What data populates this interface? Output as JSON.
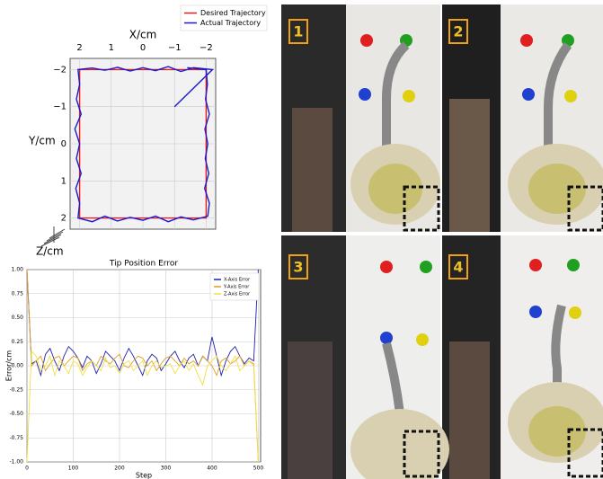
{
  "chart_data": [
    {
      "type": "line",
      "xlabel": "X/cm",
      "ylabel": "Y/cm",
      "zlabel": "Z/cm",
      "xlim": [
        2.3,
        -2.3
      ],
      "ylim": [
        2.3,
        -2.3
      ],
      "xticks": [
        2,
        1,
        0,
        {
          "value": -1,
          "label": "−1"
        },
        {
          "value": -2,
          "label": "−2"
        }
      ],
      "yticks": [
        {
          "value": -2,
          "label": "−2"
        },
        {
          "value": -1,
          "label": "−1"
        },
        0,
        1,
        2
      ],
      "grid": true,
      "legend": "upper right",
      "series": [
        {
          "name": "Desired Trajectory",
          "color": "#e02020",
          "x": [
            2.0,
            -2.0,
            -2.0,
            2.0,
            2.0
          ],
          "values": [
            -2.0,
            -2.0,
            2.0,
            2.0,
            -2.0
          ]
        },
        {
          "name": "Actual Trajectory",
          "color": "#1a1ad0",
          "x": [
            -1.0,
            -2.2,
            -1.6,
            -1.2,
            -0.8,
            -0.4,
            0.0,
            0.4,
            0.8,
            1.2,
            1.6,
            2.05,
            2.0,
            2.1,
            1.95,
            2.15,
            2.0,
            2.1,
            1.95,
            2.12,
            2.0,
            2.05,
            1.6,
            1.2,
            0.8,
            0.4,
            0.0,
            -0.4,
            -0.8,
            -1.2,
            -1.6,
            -2.05,
            -2.1,
            -1.95,
            -2.08,
            -1.97,
            -2.05,
            -1.96,
            -2.1,
            -1.98,
            -2.04,
            -2.0,
            -1.4
          ],
          "values": [
            -1.0,
            -2.0,
            -2.05,
            -1.95,
            -2.08,
            -1.97,
            -2.05,
            -1.96,
            -2.06,
            -1.98,
            -2.04,
            -2.0,
            -1.6,
            -1.2,
            -0.8,
            -0.4,
            0.0,
            0.4,
            0.8,
            1.2,
            1.6,
            2.0,
            2.1,
            1.95,
            2.08,
            1.98,
            2.06,
            1.95,
            2.1,
            1.97,
            2.05,
            1.95,
            1.6,
            1.2,
            0.8,
            0.4,
            0.0,
            -0.4,
            -0.8,
            -1.2,
            -1.6,
            -2.0,
            -2.05
          ]
        }
      ]
    },
    {
      "type": "line",
      "title": "Tip Position Error",
      "xlabel": "Step",
      "ylabel": "Error/cm",
      "xlim": [
        0,
        505
      ],
      "ylim": [
        -1,
        1
      ],
      "xticks": [
        0,
        100,
        200,
        300,
        400,
        500
      ],
      "yticks": [
        {
          "value": -1,
          "label": "-1.00"
        },
        {
          "value": -0.75,
          "label": "-0.75"
        },
        {
          "value": -0.5,
          "label": "-0.50"
        },
        {
          "value": -0.25,
          "label": "-0.25"
        },
        {
          "value": 0,
          "label": "0.00"
        },
        {
          "value": 0.25,
          "label": "0.25"
        },
        {
          "value": 0.5,
          "label": "0.50"
        },
        {
          "value": 0.75,
          "label": "0.75"
        },
        {
          "value": 1,
          "label": "1.00"
        }
      ],
      "grid": true,
      "legend": "upper right",
      "x": [
        0,
        10,
        20,
        30,
        40,
        50,
        60,
        70,
        80,
        90,
        100,
        110,
        120,
        130,
        140,
        150,
        160,
        170,
        180,
        190,
        200,
        210,
        220,
        230,
        240,
        250,
        260,
        270,
        280,
        290,
        300,
        310,
        320,
        330,
        340,
        350,
        360,
        370,
        380,
        390,
        400,
        410,
        420,
        430,
        440,
        450,
        460,
        470,
        480,
        490,
        500
      ],
      "series": [
        {
          "name": "X-Axis Error",
          "color": "#2020b0",
          "values": [
            1.0,
            0.02,
            0.05,
            -0.1,
            0.12,
            0.18,
            0.05,
            -0.05,
            0.1,
            0.2,
            0.15,
            0.08,
            -0.02,
            0.1,
            0.05,
            -0.08,
            0.02,
            0.15,
            0.1,
            0.05,
            -0.05,
            0.08,
            0.18,
            0.1,
            0.0,
            -0.1,
            0.05,
            0.12,
            0.08,
            -0.05,
            0.02,
            0.1,
            0.15,
            0.05,
            -0.02,
            0.08,
            0.12,
            0.0,
            0.1,
            0.05,
            0.3,
            0.1,
            -0.1,
            0.05,
            0.15,
            0.2,
            0.1,
            0.02,
            0.08,
            0.05,
            1.0
          ]
        },
        {
          "name": "Y-Axis Error",
          "color": "#e0a020",
          "values": [
            1.0,
            0.0,
            0.05,
            0.1,
            -0.05,
            0.02,
            0.08,
            0.1,
            0.0,
            0.05,
            0.1,
            0.08,
            -0.05,
            0.02,
            0.05,
            0.0,
            0.1,
            0.05,
            0.02,
            0.08,
            0.12,
            0.0,
            -0.02,
            0.05,
            0.1,
            0.08,
            0.0,
            0.05,
            -0.05,
            0.02,
            0.08,
            0.1,
            0.05,
            0.0,
            0.08,
            0.02,
            0.05,
            0.0,
            0.1,
            0.05,
            0.0,
            -0.1,
            0.05,
            0.08,
            0.02,
            0.05,
            0.1,
            0.0,
            0.05,
            0.02,
            -1.0
          ]
        },
        {
          "name": "Z-Axis Error",
          "color": "#f0e040",
          "values": [
            -1.0,
            0.15,
            0.1,
            -0.05,
            0.0,
            0.1,
            -0.1,
            0.05,
            0.0,
            -0.08,
            0.05,
            0.02,
            -0.1,
            -0.02,
            0.05,
            0.0,
            -0.05,
            0.08,
            -0.02,
            0.0,
            -0.08,
            0.02,
            0.05,
            -0.05,
            0.0,
            0.05,
            -0.1,
            0.0,
            0.05,
            -0.02,
            0.0,
            0.02,
            -0.08,
            0.0,
            0.05,
            -0.05,
            0.02,
            -0.1,
            -0.2,
            0.0,
            0.05,
            0.1,
            0.0,
            -0.05,
            0.02,
            0.1,
            -0.05,
            0.0,
            0.05,
            0.0,
            -1.0
          ]
        }
      ]
    }
  ],
  "panels": [
    "1",
    "2",
    "3",
    "4"
  ]
}
